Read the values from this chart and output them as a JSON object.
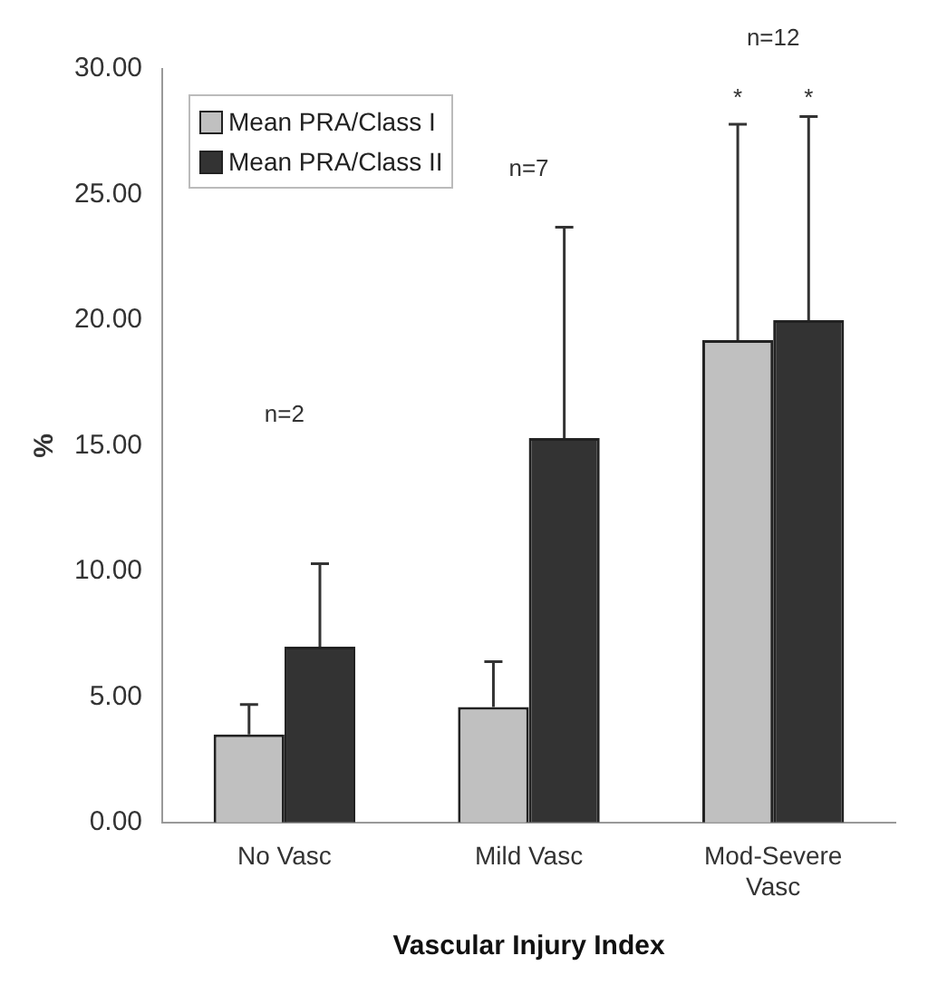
{
  "chart_data": {
    "type": "bar",
    "xlabel": "Vascular Injury Index",
    "ylabel": "%",
    "categories": [
      "No Vasc",
      "Mild Vasc",
      "Mod-Severe Vasc"
    ],
    "series": [
      {
        "name": "Mean PRA/Class I",
        "color": "#c0c0c0",
        "values": [
          3.5,
          4.6,
          19.2
        ],
        "errors": [
          [
            3.5,
            4.7
          ],
          [
            4.6,
            6.4
          ],
          [
            19.2,
            27.8
          ]
        ]
      },
      {
        "name": "Mean PRA/Class II",
        "color": "#333333",
        "values": [
          7.0,
          15.3,
          20.0
        ],
        "errors": [
          [
            7.0,
            10.3
          ],
          [
            15.3,
            23.7
          ],
          [
            20.0,
            28.1
          ]
        ]
      }
    ],
    "ylim": [
      0,
      30
    ],
    "yticks": [
      {
        "value": 0,
        "label": "0.00"
      },
      {
        "value": 5,
        "label": "5.00"
      },
      {
        "value": 10,
        "label": "10.00"
      },
      {
        "value": 15,
        "label": "15.00"
      },
      {
        "value": 20,
        "label": "20.00"
      },
      {
        "value": 25,
        "label": "25.00"
      },
      {
        "value": 30,
        "label": "30.00"
      }
    ],
    "annotations": [
      "n=2",
      "n=7",
      "n=12",
      "*",
      "*"
    ],
    "grid": false,
    "legend": "top left"
  }
}
